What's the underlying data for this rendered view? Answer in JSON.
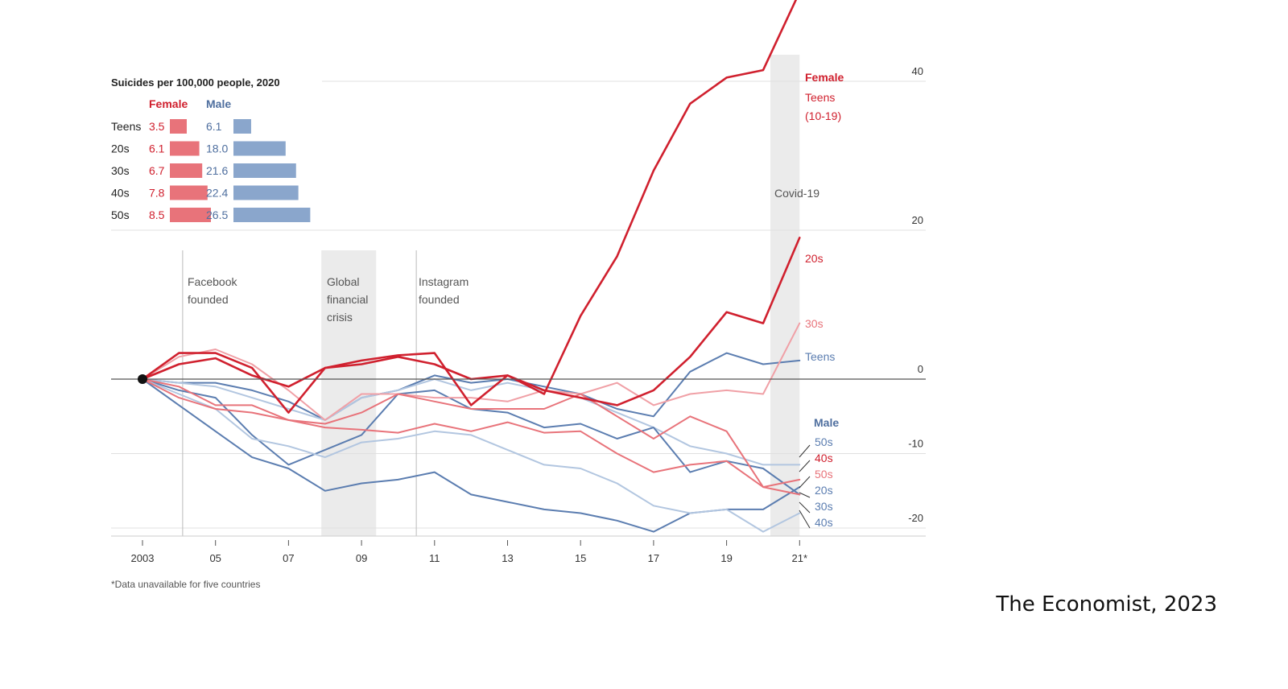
{
  "source": "The Economist, 2023",
  "colors": {
    "female_dark": "#d0202e",
    "female_mid": "#e8737a",
    "female_light": "#f0a0a6",
    "male_dark": "#5b7db0",
    "male_mid": "#8aa6cc",
    "male_light": "#b2c6e0",
    "grid": "#e0e0e0",
    "zero_line": "#555555",
    "shade": "#ebebeb"
  },
  "inset": {
    "title": "Suicides per 100,000 people, 2020",
    "female_label": "Female",
    "male_label": "Male",
    "rows": [
      {
        "age": "Teens",
        "female": 3.5,
        "male": 6.1,
        "female_text": "3.5",
        "male_text": "6.1"
      },
      {
        "age": "20s",
        "female": 6.1,
        "male": 18.0,
        "female_text": "6.1",
        "male_text": "18.0"
      },
      {
        "age": "30s",
        "female": 6.7,
        "male": 21.6,
        "female_text": "6.7",
        "male_text": "21.6"
      },
      {
        "age": "40s",
        "female": 7.8,
        "male": 22.4,
        "female_text": "7.8",
        "male_text": "22.4"
      },
      {
        "age": "50s",
        "female": 8.5,
        "male": 26.5,
        "female_text": "8.5",
        "male_text": "26.5"
      }
    ]
  },
  "annotations": {
    "facebook": [
      "Facebook",
      "founded"
    ],
    "crisis": [
      "Global",
      "financial",
      "crisis"
    ],
    "instagram": [
      "Instagram",
      "founded"
    ],
    "covid": "Covid-19"
  },
  "labels": {
    "female_head": "Female",
    "female_teens": [
      "Teens",
      "(10-19)"
    ],
    "female_20s": "20s",
    "female_30s": "30s",
    "male_teens": "Teens",
    "male_head": "Male",
    "stack": [
      "50s",
      "40s",
      "50s",
      "20s",
      "30s",
      "40s"
    ]
  },
  "footnote": "*Data unavailable for five countries",
  "chart_data": {
    "type": "line",
    "x": [
      2003,
      2004,
      2005,
      2006,
      2007,
      2008,
      2009,
      2010,
      2011,
      2012,
      2013,
      2014,
      2015,
      2016,
      2017,
      2018,
      2019,
      2020,
      2021
    ],
    "xtick_values": [
      2003,
      2005,
      2007,
      2009,
      2011,
      2013,
      2015,
      2017,
      2019,
      2021
    ],
    "xtick_labels": [
      "2003",
      "05",
      "07",
      "09",
      "11",
      "13",
      "15",
      "17",
      "19",
      "21*"
    ],
    "yticks": [
      40,
      20,
      0,
      -10,
      -20
    ],
    "ylim": [
      -22,
      48
    ],
    "shaded_periods": [
      [
        2007.9,
        2009.4
      ],
      [
        2020.2,
        2021
      ]
    ],
    "event_lines": [
      2004.1,
      2010.5
    ],
    "series": [
      {
        "name": "Teens (10-19)",
        "group": "female",
        "shade": "dark",
        "values": [
          0,
          3.5,
          3.5,
          1.5,
          -4.5,
          1.5,
          2.5,
          3.2,
          3.5,
          -3.5,
          0.5,
          -2.0,
          8.5,
          16.5,
          28.0,
          37.0,
          40.5,
          41.5,
          52.0
        ]
      },
      {
        "name": "20s",
        "group": "female",
        "shade": "dark",
        "values": [
          0,
          2.0,
          2.8,
          0.5,
          -1.0,
          1.5,
          2.0,
          3.0,
          2.0,
          0.0,
          0.5,
          -1.5,
          -2.5,
          -3.5,
          -1.5,
          3.0,
          9.0,
          7.5,
          19.0
        ]
      },
      {
        "name": "30s",
        "group": "female",
        "shade": "light",
        "values": [
          0,
          3.0,
          4.0,
          2.0,
          -1.5,
          -5.5,
          -2.0,
          -2.0,
          -2.5,
          -2.5,
          -3.0,
          -1.5,
          -2.0,
          -0.5,
          -3.5,
          -2.0,
          -1.5,
          -2.0,
          7.5
        ]
      },
      {
        "name": "40s",
        "group": "female",
        "shade": "mid",
        "values": [
          0,
          -1.0,
          -3.5,
          -3.5,
          -5.5,
          -6.0,
          -4.5,
          -2.0,
          -3.0,
          -4.0,
          -4.0,
          -4.0,
          -2.0,
          -5.0,
          -8.0,
          -5.0,
          -7.0,
          -14.5,
          -15.5
        ]
      },
      {
        "name": "50s",
        "group": "female",
        "shade": "mid",
        "values": [
          0,
          -2.5,
          -4.0,
          -4.5,
          -5.5,
          -6.5,
          -6.8,
          -7.2,
          -6.0,
          -7.0,
          -5.8,
          -7.2,
          -7.0,
          -10.0,
          -12.5,
          -11.5,
          -11.0,
          -14.5,
          -13.5
        ]
      },
      {
        "name": "Teens",
        "group": "male",
        "shade": "dark",
        "values": [
          0,
          -0.5,
          -0.5,
          -1.5,
          -3.0,
          -5.5,
          -2.5,
          -1.5,
          0.5,
          -0.5,
          0.0,
          -1.0,
          -2.0,
          -4.0,
          -5.0,
          1.0,
          3.5,
          2.0,
          2.5
        ]
      },
      {
        "name": "50s",
        "group": "male",
        "shade": "light",
        "values": [
          0,
          -0.5,
          -1.0,
          -2.5,
          -4.0,
          -5.5,
          -2.5,
          -1.5,
          0.0,
          -1.5,
          -0.5,
          -1.5,
          -2.5,
          -4.5,
          -6.5,
          -9.0,
          -10.0,
          -11.5,
          -11.5
        ]
      },
      {
        "name": "20s",
        "group": "male",
        "shade": "dark",
        "values": [
          0,
          -1.5,
          -2.5,
          -7.5,
          -11.5,
          -9.5,
          -7.5,
          -2.0,
          -1.5,
          -4.0,
          -4.5,
          -6.5,
          -6.0,
          -8.0,
          -6.5,
          -12.5,
          -11.0,
          -12.0,
          -15.5
        ]
      },
      {
        "name": "30s",
        "group": "male",
        "shade": "dark",
        "values": [
          0,
          -3.5,
          -7.0,
          -10.5,
          -12.0,
          -15.0,
          -14.0,
          -13.5,
          -12.5,
          -15.5,
          -16.5,
          -17.5,
          -18.0,
          -19.0,
          -20.5,
          -18.0,
          -17.5,
          -17.5,
          -14.5
        ]
      },
      {
        "name": "40s",
        "group": "male",
        "shade": "light",
        "values": [
          0,
          -2.0,
          -4.0,
          -8.0,
          -9.0,
          -10.5,
          -8.5,
          -8.0,
          -7.0,
          -7.5,
          -9.5,
          -11.5,
          -12.0,
          -14.0,
          -17.0,
          -18.0,
          -17.5,
          -20.5,
          -18.0
        ]
      }
    ]
  }
}
